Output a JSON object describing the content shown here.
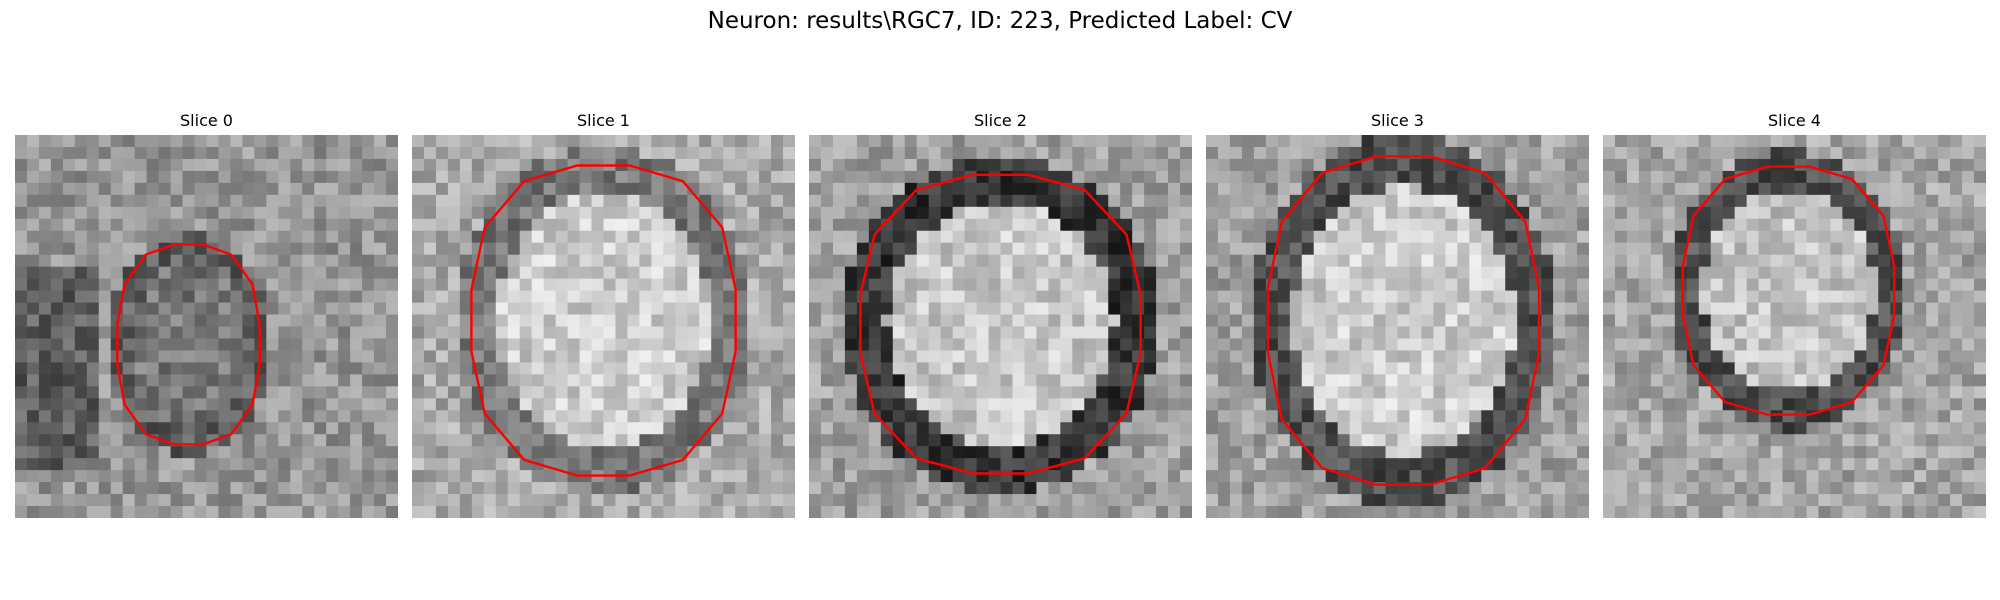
{
  "figure": {
    "title": "Neuron: results\\RGC7, ID: 223, Predicted Label: CV"
  },
  "slices": [
    {
      "label": "Slice 0",
      "contour_color": "#ff0000"
    },
    {
      "label": "Slice 1",
      "contour_color": "#ff0000"
    },
    {
      "label": "Slice 2",
      "contour_color": "#ff0000"
    },
    {
      "label": "Slice 3",
      "contour_color": "#ff0000"
    },
    {
      "label": "Slice 4",
      "contour_color": "#ff0000"
    }
  ],
  "colors": {
    "background": "#ffffff",
    "contour": "#ff0000",
    "colormap": "grayscale"
  }
}
